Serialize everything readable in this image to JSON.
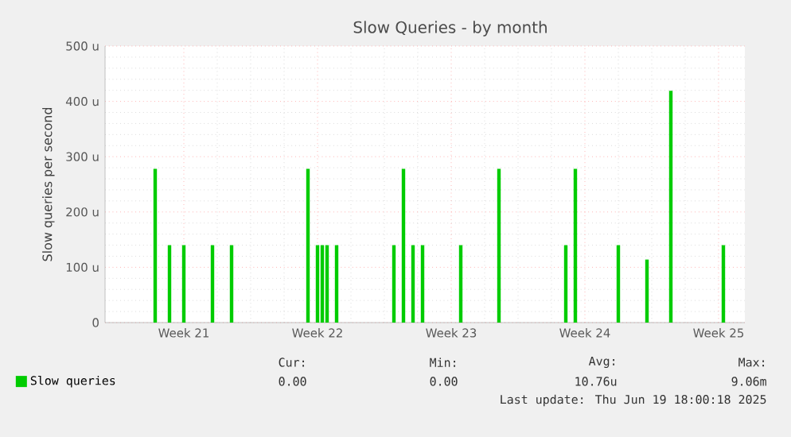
{
  "chart_data": {
    "type": "bar",
    "title": "Slow Queries - by month",
    "ylabel": "Slow queries per second",
    "categories": [
      null,
      null,
      null,
      null,
      null,
      null,
      null,
      null,
      null,
      null,
      null,
      null,
      null,
      null,
      null,
      null,
      "Week 21",
      null,
      null,
      null,
      null,
      null,
      null,
      null,
      null,
      null,
      null,
      null,
      null,
      null,
      null,
      null,
      null,
      null,
      null,
      null,
      null,
      null,
      null,
      null,
      null,
      null,
      null,
      null,
      "Week 22",
      null,
      null,
      null,
      null,
      null,
      null,
      null,
      null,
      null,
      null,
      null,
      null,
      null,
      null,
      null,
      null,
      null,
      null,
      null,
      null,
      null,
      null,
      null,
      null,
      null,
      null,
      null,
      "Week 23",
      null,
      null,
      null,
      null,
      null,
      null,
      null,
      null,
      null,
      null,
      null,
      null,
      null,
      null,
      null,
      null,
      null,
      null,
      null,
      null,
      null,
      null,
      null,
      null,
      null,
      null,
      null,
      "Week 24",
      null,
      null,
      null,
      null,
      null,
      null,
      null,
      null,
      null,
      null,
      null,
      null,
      null,
      null,
      null,
      null,
      null,
      null,
      null,
      null,
      null,
      null,
      null,
      null,
      null,
      null,
      null,
      "Week 25",
      null,
      null,
      null,
      null,
      null
    ],
    "series": [
      {
        "name": "Slow queries",
        "color": "#00cc00",
        "values": [
          null,
          null,
          null,
          null,
          null,
          null,
          null,
          null,
          null,
          null,
          278,
          null,
          null,
          140,
          null,
          null,
          140,
          null,
          null,
          null,
          null,
          null,
          140,
          null,
          null,
          null,
          140,
          null,
          null,
          null,
          null,
          null,
          null,
          null,
          null,
          null,
          null,
          null,
          null,
          null,
          null,
          null,
          278,
          null,
          140,
          140,
          140,
          null,
          140,
          null,
          null,
          null,
          null,
          null,
          null,
          null,
          null,
          null,
          null,
          null,
          140,
          null,
          278,
          null,
          140,
          null,
          140,
          null,
          null,
          null,
          null,
          null,
          null,
          null,
          140,
          null,
          null,
          null,
          null,
          null,
          null,
          null,
          278,
          null,
          null,
          null,
          null,
          null,
          null,
          null,
          null,
          null,
          null,
          null,
          null,
          null,
          140,
          null,
          278,
          null,
          null,
          null,
          null,
          null,
          null,
          null,
          null,
          140,
          null,
          null,
          null,
          null,
          null,
          114,
          null,
          null,
          null,
          null,
          419,
          null,
          null,
          null,
          null,
          null,
          null,
          null,
          null,
          null,
          null,
          140,
          null,
          null,
          null,
          null
        ]
      }
    ],
    "ylim": [
      0,
      500
    ],
    "yticks": [
      0,
      {
        "value": 100,
        "label": "100 u"
      },
      {
        "value": 200,
        "label": "200 u"
      },
      {
        "value": 300,
        "label": "300 u"
      },
      {
        "value": 400,
        "label": "400 u"
      },
      {
        "value": 500,
        "label": "500 u"
      }
    ],
    "grid": true,
    "legend": "bottom left",
    "annotations": [
      "Cur:",
      "0.00",
      "Min:",
      "0.00",
      "Avg:",
      "10.76u",
      "Max:",
      "9.06m",
      "Last update: Thu Jun 19 18:00:18 2025"
    ]
  }
}
